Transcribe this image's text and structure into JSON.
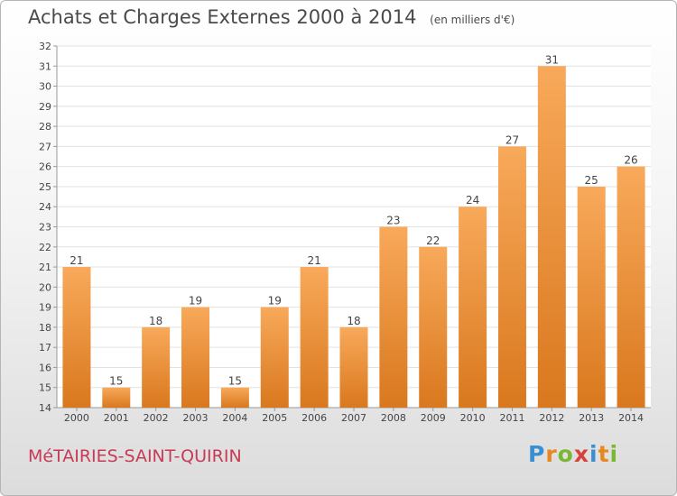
{
  "header": {
    "title": "Achats et Charges Externes 2000 à 2014",
    "subtitle": "(en milliers d'€)"
  },
  "footer": {
    "city": "MéTAIRIES-SAINT-QUIRIN",
    "logo": "Proxiti"
  },
  "colors": {
    "bar_light": "#f8a95a",
    "bar_dark": "#d9781e",
    "title": "#4a4a4a",
    "city": "#c63b56"
  },
  "chart_data": {
    "type": "bar",
    "title": "Achats et Charges Externes 2000 à 2014",
    "subtitle": "(en milliers d'€)",
    "categories": [
      "2000",
      "2001",
      "2002",
      "2003",
      "2004",
      "2005",
      "2006",
      "2007",
      "2008",
      "2009",
      "2010",
      "2011",
      "2012",
      "2013",
      "2014"
    ],
    "values": [
      21,
      15,
      18,
      19,
      15,
      19,
      21,
      18,
      23,
      22,
      24,
      27,
      31,
      25,
      26
    ],
    "ylim": [
      14,
      32
    ],
    "yticks": [
      14,
      15,
      16,
      17,
      18,
      19,
      20,
      21,
      22,
      23,
      24,
      25,
      26,
      27,
      28,
      29,
      30,
      31,
      32
    ],
    "xlabel": "",
    "ylabel": "",
    "grid": true,
    "data_labels": true
  }
}
